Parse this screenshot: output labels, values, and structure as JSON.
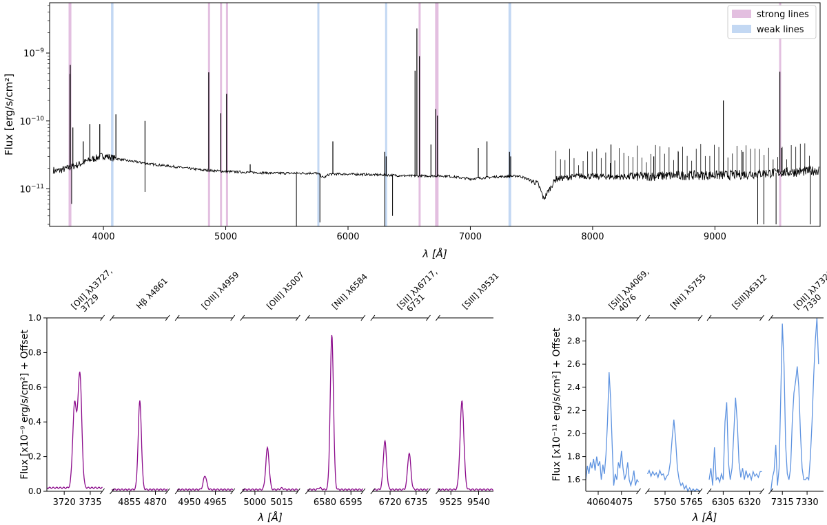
{
  "chart_data": [
    {
      "id": "top",
      "type": "line",
      "title": "",
      "xlabel": "λ [Å]",
      "ylabel": "Flux [erg/s/cm²]",
      "yscale": "log",
      "xlim": [
        3560,
        9860
      ],
      "ylim": [
        2.8e-12,
        5.5e-09
      ],
      "xticks": [
        4000,
        5000,
        6000,
        7000,
        8000,
        9000
      ],
      "yticks": [
        {
          "value": 1e-11,
          "base": "10",
          "exp": "−11"
        },
        {
          "value": 1e-10,
          "base": "10",
          "exp": "−10"
        },
        {
          "value": 1e-09,
          "base": "10",
          "exp": "−9"
        }
      ],
      "legend": {
        "position": "top-right",
        "entries": [
          {
            "label": "strong lines",
            "color": "#e3bfe0"
          },
          {
            "label": "weak lines",
            "color": "#c3d8f3"
          }
        ]
      },
      "strong_bands": [
        [
          3715,
          3738
        ],
        [
          4855,
          4868
        ],
        [
          4953,
          4966
        ],
        [
          5002,
          5015
        ],
        [
          6577,
          6590
        ],
        [
          6712,
          6740
        ],
        [
          9525,
          9538
        ]
      ],
      "weak_bands": [
        [
          4062,
          4082
        ],
        [
          5749,
          5762
        ],
        [
          6303,
          6318
        ],
        [
          7312,
          7334
        ]
      ],
      "continuum": [
        [
          3600,
          1.8e-11
        ],
        [
          3700,
          2e-11
        ],
        [
          3800,
          2.3e-11
        ],
        [
          3900,
          2.7e-11
        ],
        [
          4000,
          3.1e-11
        ],
        [
          4100,
          2.8e-11
        ],
        [
          4200,
          2.6e-11
        ],
        [
          4400,
          2.3e-11
        ],
        [
          4600,
          2.1e-11
        ],
        [
          4800,
          1.9e-11
        ],
        [
          5000,
          1.8e-11
        ],
        [
          5200,
          1.75e-11
        ],
        [
          5400,
          1.7e-11
        ],
        [
          5600,
          1.7e-11
        ],
        [
          5750,
          1.7e-11
        ],
        [
          5800,
          1.45e-11
        ],
        [
          5850,
          1.65e-11
        ],
        [
          6000,
          1.65e-11
        ],
        [
          6300,
          1.6e-11
        ],
        [
          6500,
          1.55e-11
        ],
        [
          6800,
          1.55e-11
        ],
        [
          7000,
          1.4e-11
        ],
        [
          7200,
          1.5e-11
        ],
        [
          7400,
          1.55e-11
        ],
        [
          7550,
          1.2e-11
        ],
        [
          7600,
          7e-12
        ],
        [
          7650,
          1e-11
        ],
        [
          7700,
          1.4e-11
        ],
        [
          7900,
          1.55e-11
        ],
        [
          8200,
          1.5e-11
        ],
        [
          8500,
          1.55e-11
        ],
        [
          8800,
          1.6e-11
        ],
        [
          9100,
          1.6e-11
        ],
        [
          9400,
          1.7e-11
        ],
        [
          9700,
          1.8e-11
        ],
        [
          9850,
          1.9e-11
        ]
      ],
      "emission_lines": [
        [
          3726,
          4.9e-10
        ],
        [
          3729,
          6.7e-10
        ],
        [
          3750,
          8e-11
        ],
        [
          3835,
          5e-11
        ],
        [
          3889,
          9e-11
        ],
        [
          3970,
          9e-11
        ],
        [
          4102,
          1.25e-10
        ],
        [
          4340,
          1e-10
        ],
        [
          4861,
          5.2e-10
        ],
        [
          4959,
          1.3e-10
        ],
        [
          5007,
          2.5e-10
        ],
        [
          5200,
          2.3e-11
        ],
        [
          5876,
          5e-11
        ],
        [
          6300,
          3.5e-11
        ],
        [
          6312,
          3e-11
        ],
        [
          6548,
          5.5e-10
        ],
        [
          6563,
          2.3e-09
        ],
        [
          6584,
          9e-10
        ],
        [
          6678,
          4.5e-11
        ],
        [
          6717,
          1.5e-10
        ],
        [
          6731,
          1.2e-10
        ],
        [
          7065,
          4e-11
        ],
        [
          7136,
          5e-11
        ],
        [
          7320,
          3.5e-11
        ],
        [
          7330,
          3e-11
        ],
        [
          8150,
          4.5e-11
        ],
        [
          8500,
          3e-11
        ],
        [
          8700,
          3.5e-11
        ],
        [
          9069,
          2e-10
        ],
        [
          9229,
          3.5e-11
        ],
        [
          9531,
          5.3e-10
        ],
        [
          9546,
          4e-11
        ]
      ],
      "absorption_dips": [
        [
          3740,
          6e-12
        ],
        [
          4340,
          9e-12
        ],
        [
          5578,
          2.8e-12
        ],
        [
          5770,
          3.2e-12
        ],
        [
          6300,
          2.8e-12
        ],
        [
          6364,
          4e-12
        ],
        [
          9350,
          3e-12
        ],
        [
          9400,
          3e-12
        ],
        [
          9500,
          3e-12
        ],
        [
          9780,
          3e-12
        ]
      ]
    },
    {
      "id": "strong-lines",
      "type": "line",
      "color": "#8b0a8b",
      "ylabel": "Flux [x10⁻⁹ erg/s/cm²] + Offset",
      "xlabel": "λ [Å]",
      "ylim": [
        0,
        1.0
      ],
      "yticks": [
        0.0,
        0.2,
        0.4,
        0.6,
        0.8,
        1.0
      ],
      "panels": [
        {
          "label": "[OII] λλ3727,",
          "label2": "3729",
          "xlim": [
            3710,
            3742
          ],
          "xticks": [
            3720,
            3735
          ],
          "lines": [
            [
              3726,
              0.48,
              1.3
            ],
            [
              3729,
              0.66,
              1.3
            ]
          ],
          "base": 0.02
        },
        {
          "label": "Hβ λ4861",
          "xlim": [
            4845,
            4877
          ],
          "xticks": [
            4855,
            4870
          ],
          "lines": [
            [
              4861,
              0.51,
              1.1
            ]
          ],
          "base": 0.01
        },
        {
          "label": "[OIII] λ4959",
          "xlim": [
            4943,
            4975
          ],
          "xticks": [
            4950,
            4965
          ],
          "lines": [
            [
              4959,
              0.08,
              1.1
            ]
          ],
          "base": 0.01
        },
        {
          "label": "[OIII] λ5007",
          "xlim": [
            4993,
            5024
          ],
          "xticks": [
            5000,
            5015
          ],
          "lines": [
            [
              5007,
              0.24,
              1.1
            ],
            [
              5015,
              0.008,
              1.0
            ]
          ],
          "base": 0.01
        },
        {
          "label": "[NII] λ6584",
          "xlim": [
            6570,
            6602
          ],
          "xticks": [
            6580,
            6595
          ],
          "lines": [
            [
              6584,
              0.89,
              1.1
            ],
            [
              6577,
              0.01,
              1.0
            ]
          ],
          "base": 0.01
        },
        {
          "label": "[SII] λλ6717,",
          "label2": "6731",
          "xlim": [
            6710,
            6742
          ],
          "xticks": [
            6720,
            6735
          ],
          "lines": [
            [
              6717,
              0.28,
              1.1
            ],
            [
              6731,
              0.21,
              1.1
            ]
          ],
          "base": 0.01
        },
        {
          "label": "[SIII] λ9531",
          "xlim": [
            9518,
            9548
          ],
          "xticks": [
            9525,
            9540
          ],
          "lines": [
            [
              9531,
              0.51,
              1.2
            ]
          ],
          "base": 0.01
        }
      ]
    },
    {
      "id": "weak-lines",
      "type": "line",
      "color": "#5e93e0",
      "ylabel": "Flux [x10⁻¹¹ erg/s/cm²] + Offset",
      "xlabel": "λ [Å]",
      "ylim": [
        1.5,
        3.0
      ],
      "yticks": [
        1.6,
        1.8,
        2.0,
        2.2,
        2.4,
        2.6,
        2.8,
        3.0
      ],
      "panels": [
        {
          "label": "[SII] λλ4069,",
          "label2": "4076",
          "xlim": [
            4052,
            4086
          ],
          "xticks": [
            4060,
            4075
          ],
          "points": [
            [
              4052,
              1.6
            ],
            [
              4053,
              1.72
            ],
            [
              4054,
              1.65
            ],
            [
              4055,
              1.75
            ],
            [
              4056,
              1.7
            ],
            [
              4057,
              1.78
            ],
            [
              4058,
              1.68
            ],
            [
              4059,
              1.8
            ],
            [
              4060,
              1.72
            ],
            [
              4061,
              1.76
            ],
            [
              4062,
              1.6
            ],
            [
              4063,
              1.73
            ],
            [
              4064,
              1.65
            ],
            [
              4065,
              1.82
            ],
            [
              4066,
              2.1
            ],
            [
              4067,
              2.53
            ],
            [
              4068,
              2.3
            ],
            [
              4069,
              1.9
            ],
            [
              4070,
              1.55
            ],
            [
              4071,
              1.65
            ],
            [
              4072,
              1.6
            ],
            [
              4073,
              1.75
            ],
            [
              4074,
              1.7
            ],
            [
              4075,
              1.85
            ],
            [
              4076,
              1.7
            ],
            [
              4077,
              1.6
            ],
            [
              4078,
              1.65
            ],
            [
              4079,
              1.75
            ],
            [
              4080,
              1.6
            ],
            [
              4081,
              1.55
            ],
            [
              4082,
              1.6
            ],
            [
              4083,
              1.68
            ],
            [
              4084,
              1.55
            ],
            [
              4085,
              1.6
            ],
            [
              4086,
              1.58
            ]
          ]
        },
        {
          "label": "[NII] λ5755",
          "xlim": [
            5740,
            5770
          ],
          "xticks": [
            5750,
            5765
          ],
          "points": [
            [
              5740,
              1.65
            ],
            [
              5741,
              1.68
            ],
            [
              5742,
              1.63
            ],
            [
              5743,
              1.67
            ],
            [
              5744,
              1.64
            ],
            [
              5745,
              1.66
            ],
            [
              5746,
              1.62
            ],
            [
              5747,
              1.68
            ],
            [
              5748,
              1.64
            ],
            [
              5749,
              1.65
            ],
            [
              5750,
              1.6
            ],
            [
              5751,
              1.63
            ],
            [
              5752,
              1.65
            ],
            [
              5753,
              1.75
            ],
            [
              5754,
              1.95
            ],
            [
              5755,
              2.12
            ],
            [
              5756,
              1.95
            ],
            [
              5757,
              1.7
            ],
            [
              5758,
              1.6
            ],
            [
              5759,
              1.55
            ],
            [
              5760,
              1.57
            ],
            [
              5761,
              1.52
            ],
            [
              5762,
              1.55
            ],
            [
              5763,
              1.5
            ],
            [
              5764,
              1.53
            ],
            [
              5765,
              1.5
            ],
            [
              5766,
              1.52
            ],
            [
              5767,
              1.5
            ],
            [
              5768,
              1.52
            ],
            [
              5769,
              1.51
            ],
            [
              5770,
              1.5
            ]
          ]
        },
        {
          "label": "[SIII]λ6312",
          "xlim": [
            6297,
            6327
          ],
          "xticks": [
            6305,
            6320
          ],
          "points": [
            [
              6297,
              1.6
            ],
            [
              6298,
              1.7
            ],
            [
              6299,
              1.55
            ],
            [
              6300,
              1.88
            ],
            [
              6301,
              1.6
            ],
            [
              6302,
              1.62
            ],
            [
              6303,
              1.58
            ],
            [
              6304,
              1.65
            ],
            [
              6305,
              1.6
            ],
            [
              6306,
              2.1
            ],
            [
              6307,
              2.27
            ],
            [
              6308,
              1.75
            ],
            [
              6309,
              1.6
            ],
            [
              6310,
              1.7
            ],
            [
              6311,
              2.0
            ],
            [
              6312,
              2.31
            ],
            [
              6313,
              2.1
            ],
            [
              6314,
              1.75
            ],
            [
              6315,
              1.62
            ],
            [
              6316,
              1.7
            ],
            [
              6317,
              1.6
            ],
            [
              6318,
              1.68
            ],
            [
              6319,
              1.62
            ],
            [
              6320,
              1.65
            ],
            [
              6321,
              1.6
            ],
            [
              6322,
              1.67
            ],
            [
              6323,
              1.63
            ],
            [
              6324,
              1.65
            ],
            [
              6325,
              1.62
            ],
            [
              6326,
              1.67
            ],
            [
              6327,
              1.67
            ]
          ]
        },
        {
          "label": "[OII] λλ7320,",
          "label2": "7330",
          "xlim": [
            7308,
            7340
          ],
          "xticks": [
            7315,
            7330
          ],
          "points": [
            [
              7308,
              1.5
            ],
            [
              7309,
              1.62
            ],
            [
              7310,
              1.68
            ],
            [
              7311,
              1.9
            ],
            [
              7312,
              1.55
            ],
            [
              7313,
              1.7
            ],
            [
              7314,
              2.3
            ],
            [
              7315,
              2.95
            ],
            [
              7316,
              2.6
            ],
            [
              7317,
              1.9
            ],
            [
              7318,
              1.65
            ],
            [
              7319,
              1.6
            ],
            [
              7320,
              1.7
            ],
            [
              7321,
              2.1
            ],
            [
              7322,
              2.35
            ],
            [
              7323,
              2.45
            ],
            [
              7324,
              2.58
            ],
            [
              7325,
              2.4
            ],
            [
              7326,
              2.0
            ],
            [
              7327,
              1.7
            ],
            [
              7328,
              1.6
            ],
            [
              7329,
              1.6
            ],
            [
              7330,
              1.62
            ],
            [
              7331,
              1.6
            ],
            [
              7332,
              1.8
            ],
            [
              7333,
              2.1
            ],
            [
              7334,
              2.5
            ],
            [
              7335,
              2.8
            ],
            [
              7336,
              3.0
            ],
            [
              7337,
              2.6
            ]
          ]
        }
      ]
    }
  ]
}
